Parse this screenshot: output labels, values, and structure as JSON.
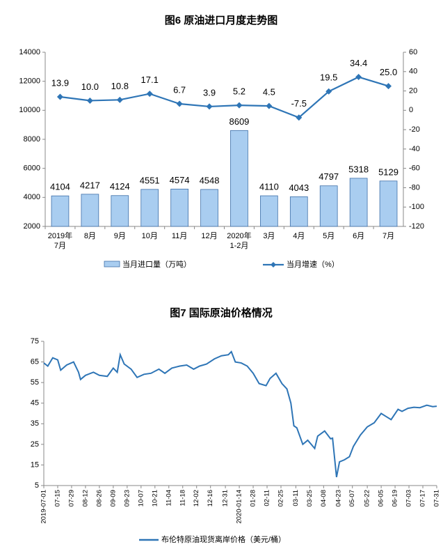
{
  "chart_data": [
    {
      "type": "bar-line",
      "title": "图6  原油进口月度走势图",
      "categories": [
        [
          "2019年",
          "7月"
        ],
        "8月",
        "9月",
        "10月",
        "11月",
        "12月",
        [
          "2020年",
          "1-2月"
        ],
        "3月",
        "4月",
        "5月",
        "6月",
        "7月"
      ],
      "series": [
        {
          "name": "当月进口量（万吨）",
          "color": "#a9cdf0",
          "values": [
            4104,
            4217,
            4124,
            4551,
            4574,
            4548,
            8609,
            4110,
            4043,
            4797,
            5318,
            5129
          ]
        },
        {
          "name": "当月增速（%）",
          "color": "#2e75b6",
          "axis": "y2",
          "values": [
            13.9,
            10.0,
            10.8,
            17.1,
            6.7,
            3.9,
            5.2,
            4.5,
            -7.5,
            19.5,
            34.4,
            25.0
          ],
          "value_labels": [
            "13.9",
            "10.0",
            "10.8",
            "17.1",
            "6.7",
            "3.9",
            "5.2",
            "4.5",
            "-7.5",
            "19.5",
            "34.4",
            "25.0"
          ]
        }
      ],
      "ylim": [
        2000,
        14000
      ],
      "yticks": [
        2000,
        4000,
        6000,
        8000,
        10000,
        12000,
        14000
      ],
      "y2lim": [
        -120,
        60
      ],
      "y2ticks": [
        -120,
        -100,
        -80,
        -60,
        -40,
        -20,
        0,
        20,
        40,
        60
      ],
      "legend": "bottom"
    },
    {
      "type": "line",
      "title": "图7  国际原油价格情况",
      "x": [
        "2019-07-01",
        "2019-07-05",
        "2019-07-10",
        "2019-07-15",
        "2019-07-18",
        "2019-07-24",
        "2019-07-31",
        "2019-08-05",
        "2019-08-07",
        "2019-08-12",
        "2019-08-20",
        "2019-08-26",
        "2019-09-03",
        "2019-09-09",
        "2019-09-13",
        "2019-09-16",
        "2019-09-20",
        "2019-09-27",
        "2019-10-03",
        "2019-10-10",
        "2019-10-17",
        "2019-10-25",
        "2019-10-31",
        "2019-11-07",
        "2019-11-15",
        "2019-11-22",
        "2019-11-29",
        "2019-12-05",
        "2019-12-12",
        "2019-12-20",
        "2019-12-27",
        "2020-01-03",
        "2020-01-06",
        "2020-01-10",
        "2020-01-16",
        "2020-01-22",
        "2020-01-28",
        "2020-02-03",
        "2020-02-10",
        "2020-02-14",
        "2020-02-20",
        "2020-02-26",
        "2020-03-02",
        "2020-03-06",
        "2020-03-09",
        "2020-03-12",
        "2020-03-18",
        "2020-03-23",
        "2020-03-30",
        "2020-04-02",
        "2020-04-09",
        "2020-04-15",
        "2020-04-17",
        "2020-04-21",
        "2020-04-24",
        "2020-04-29",
        "2020-05-04",
        "2020-05-08",
        "2020-05-15",
        "2020-05-22",
        "2020-05-29",
        "2020-06-05",
        "2020-06-10",
        "2020-06-15",
        "2020-06-22",
        "2020-06-26",
        "2020-07-02",
        "2020-07-08",
        "2020-07-14",
        "2020-07-21",
        "2020-07-27",
        "2020-07-31"
      ],
      "series": [
        {
          "name": "布伦特原油现货离岸价格（美元/桶）",
          "color": "#2e75b6",
          "values": [
            64.5,
            63,
            67,
            66,
            61,
            63.5,
            65,
            60,
            56.5,
            58.5,
            60,
            58.5,
            58,
            62,
            60,
            68.5,
            64,
            61.5,
            57.5,
            59,
            59.5,
            61.5,
            59.5,
            62,
            63,
            63.5,
            61.5,
            63,
            64,
            66.5,
            68,
            68.5,
            70,
            65,
            64.5,
            63,
            59.5,
            54.5,
            53.5,
            57,
            59.5,
            54.5,
            51.9,
            45,
            34,
            33,
            25,
            27,
            23,
            29,
            31.5,
            27.7,
            28,
            9.1,
            16.5,
            17.5,
            19,
            24,
            29.5,
            33.5,
            35.5,
            40,
            38.5,
            37,
            42,
            41,
            42.5,
            43,
            42.8,
            44,
            43.3,
            43.5
          ]
        }
      ],
      "xlim": [
        "2019-07-01",
        "2020-07-31"
      ],
      "xticks": [
        {
          "value": "2019-07-01",
          "label": "2019-07-01"
        },
        {
          "value": "2019-07-15",
          "label": "07-15"
        },
        {
          "value": "2019-07-29",
          "label": "07-29"
        },
        {
          "value": "2019-08-12",
          "label": "08-12"
        },
        {
          "value": "2019-08-26",
          "label": "08-26"
        },
        {
          "value": "2019-09-09",
          "label": "09-09"
        },
        {
          "value": "2019-09-23",
          "label": "09-23"
        },
        {
          "value": "2019-10-07",
          "label": "10-07"
        },
        {
          "value": "2019-10-21",
          "label": "10-21"
        },
        {
          "value": "2019-11-04",
          "label": "11-04"
        },
        {
          "value": "2019-11-18",
          "label": "11-18"
        },
        {
          "value": "2019-12-02",
          "label": "12-02"
        },
        {
          "value": "2019-12-16",
          "label": "12-16"
        },
        {
          "value": "2019-12-31",
          "label": "12-31"
        },
        {
          "value": "2020-01-14",
          "label": "2020-01-14"
        },
        {
          "value": "2020-01-28",
          "label": "01-28"
        },
        {
          "value": "2020-02-11",
          "label": "02-11"
        },
        {
          "value": "2020-02-25",
          "label": "02-25"
        },
        {
          "value": "2020-03-11",
          "label": "03-11"
        },
        {
          "value": "2020-03-25",
          "label": "03-25"
        },
        {
          "value": "2020-04-08",
          "label": "04-08"
        },
        {
          "value": "2020-04-23",
          "label": "04-23"
        },
        {
          "value": "2020-05-07",
          "label": "05-07"
        },
        {
          "value": "2020-05-22",
          "label": "05-22"
        },
        {
          "value": "2020-06-05",
          "label": "06-05"
        },
        {
          "value": "2020-06-19",
          "label": "06-19"
        },
        {
          "value": "2020-07-03",
          "label": "07-03"
        },
        {
          "value": "2020-07-17",
          "label": "07-17"
        },
        {
          "value": "2020-07-31",
          "label": "07-31"
        }
      ],
      "ylim": [
        5,
        75
      ],
      "yticks": [
        5,
        15,
        25,
        35,
        45,
        55,
        65,
        75
      ],
      "legend": "bottom"
    }
  ]
}
